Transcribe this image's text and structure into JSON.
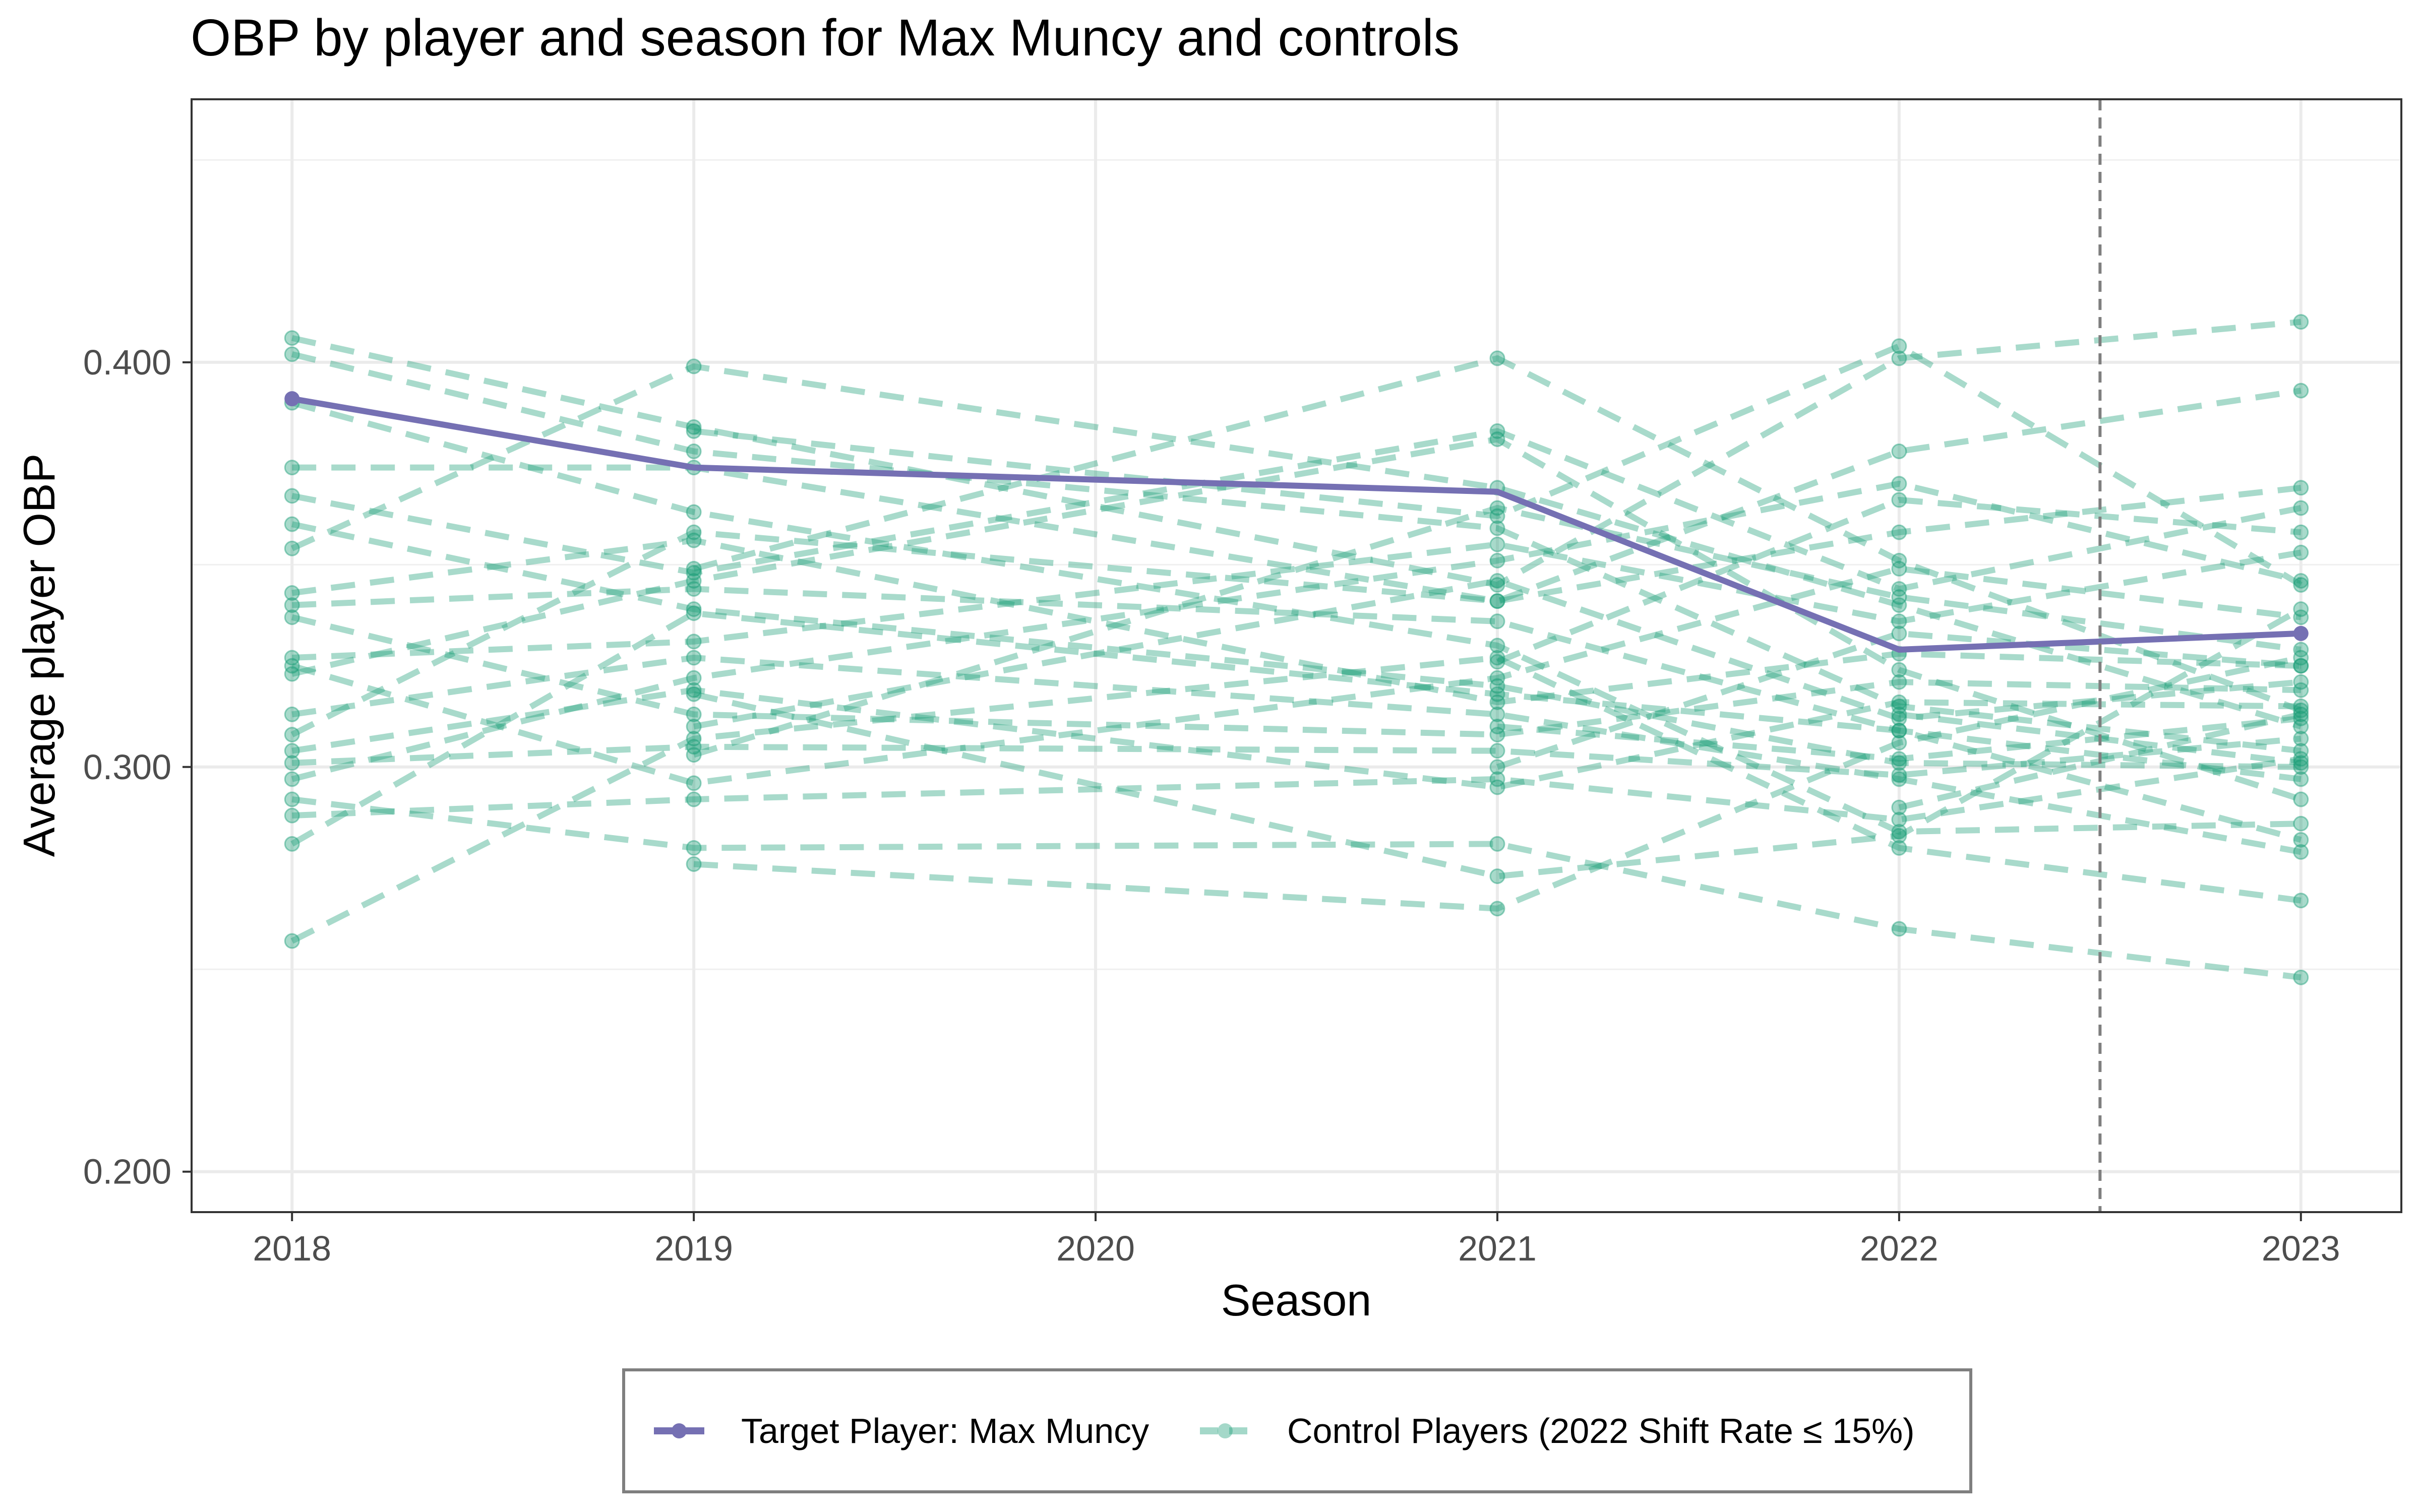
{
  "chart_data": {
    "type": "line",
    "title": "OBP by player and season for Max Muncy and controls",
    "xlabel": "Season",
    "ylabel": "Average player OBP",
    "x": [
      2018,
      2019,
      2020,
      2021,
      2022,
      2023
    ],
    "x_tick_labels": [
      "2018",
      "2019",
      "2020",
      "2021",
      "2022",
      "2023"
    ],
    "xlim": [
      2017.75,
      2023.25
    ],
    "ylim": [
      0.19,
      0.465
    ],
    "y_ticks": [
      0.2,
      0.3,
      0.4
    ],
    "y_tick_labels": [
      "0.200",
      "0.300",
      "0.400"
    ],
    "grid": true,
    "reference_line": {
      "x": 2022.5,
      "style": "dashed"
    },
    "legend": {
      "position": "bottom",
      "entries": [
        "Target Player: Max Muncy",
        "Control Players (2022 Shift Rate ≤ 15%)"
      ]
    },
    "colors": {
      "target": "#7570b3",
      "control": "#1b9e77",
      "reference": "#7f7f7f"
    },
    "series": [
      {
        "name": "Target Player: Max Muncy",
        "role": "target",
        "x": [
          2018,
          2019,
          2021,
          2022,
          2023
        ],
        "values": [
          0.391,
          0.374,
          0.368,
          0.329,
          0.333
        ]
      },
      {
        "name": "Control Players (2022 Shift Rate ≤ 15%)",
        "role": "control",
        "lines": [
          {
            "x": [
              2018,
              2019,
              2021,
              2022,
              2023
            ],
            "values": [
              0.406,
              0.384,
              0.345,
              0.401,
              0.41
            ]
          },
          {
            "x": [
              2018,
              2019,
              2021,
              2022,
              2023
            ],
            "values": [
              0.402,
              0.378,
              0.359,
              0.315,
              0.304
            ]
          },
          {
            "x": [
              2018,
              2019,
              2021,
              2022,
              2023
            ],
            "values": [
              0.39,
              0.363,
              0.33,
              0.284,
              0.286
            ]
          },
          {
            "x": [
              2018,
              2019,
              2021,
              2022,
              2023
            ],
            "values": [
              0.374,
              0.374,
              0.341,
              0.378,
              0.393
            ]
          },
          {
            "x": [
              2018,
              2019,
              2021,
              2022,
              2023
            ],
            "values": [
              0.367,
              0.348,
              0.383,
              0.344,
              0.364
            ]
          },
          {
            "x": [
              2018,
              2019,
              2021,
              2022,
              2023
            ],
            "values": [
              0.36,
              0.339,
              0.32,
              0.301,
              0.3
            ]
          },
          {
            "x": [
              2018,
              2019,
              2021,
              2022,
              2023
            ],
            "values": [
              0.354,
              0.399,
              0.369,
              0.34,
              0.31
            ]
          },
          {
            "x": [
              2018,
              2019,
              2021,
              2022,
              2023
            ],
            "values": [
              0.343,
              0.356,
              0.316,
              0.328,
              0.325
            ]
          },
          {
            "x": [
              2018,
              2019,
              2021,
              2022,
              2023
            ],
            "values": [
              0.34,
              0.344,
              0.336,
              0.309,
              0.297
            ]
          },
          {
            "x": [
              2018,
              2019,
              2021,
              2022,
              2023
            ],
            "values": [
              0.337,
              0.313,
              0.308,
              0.321,
              0.319
            ]
          },
          {
            "x": [
              2018,
              2019,
              2021,
              2022,
              2023
            ],
            "values": [
              0.327,
              0.331,
              0.355,
              0.336,
              0.353
            ]
          },
          {
            "x": [
              2018,
              2019,
              2021,
              2022,
              2023
            ],
            "values": [
              0.325,
              0.296,
              0.322,
              0.349,
              0.337
            ]
          },
          {
            "x": [
              2018,
              2019,
              2021,
              2022,
              2023
            ],
            "values": [
              0.323,
              0.346,
              0.381,
              0.324,
              0.292
            ]
          },
          {
            "x": [
              2018,
              2019,
              2021,
              2022,
              2023
            ],
            "values": [
              0.313,
              0.327,
              0.313,
              0.297,
              0.279
            ]
          },
          {
            "x": [
              2018,
              2019,
              2021,
              2022,
              2023
            ],
            "values": [
              0.308,
              0.358,
              0.341,
              0.358,
              0.369
            ]
          },
          {
            "x": [
              2018,
              2019,
              2021,
              2022,
              2023
            ],
            "values": [
              0.304,
              0.319,
              0.295,
              0.316,
              0.315
            ]
          },
          {
            "x": [
              2018,
              2019,
              2021,
              2022,
              2023
            ],
            "values": [
              0.301,
              0.305,
              0.304,
              0.298,
              0.307
            ]
          },
          {
            "x": [
              2018,
              2019,
              2021,
              2022,
              2023
            ],
            "values": [
              0.297,
              0.322,
              0.351,
              0.37,
              0.346
            ]
          },
          {
            "x": [
              2018,
              2019,
              2021,
              2022,
              2023
            ],
            "values": [
              0.292,
              0.28,
              0.281,
              0.26,
              0.248
            ]
          },
          {
            "x": [
              2018,
              2019,
              2021,
              2022,
              2023
            ],
            "values": [
              0.288,
              0.292,
              0.297,
              0.287,
              0.302
            ]
          },
          {
            "x": [
              2018,
              2019,
              2021,
              2022,
              2023
            ],
            "values": [
              0.281,
              0.338,
              0.318,
              0.309,
              0.282
            ]
          },
          {
            "x": [
              2018,
              2019,
              2021,
              2022,
              2023
            ],
            "values": [
              0.257,
              0.307,
              0.327,
              0.28,
              0.267
            ]
          },
          {
            "x": [
              2019,
              2021,
              2022,
              2023
            ],
            "values": [
              0.276,
              0.265,
              0.306,
              0.327
            ]
          },
          {
            "x": [
              2019,
              2021,
              2022,
              2023
            ],
            "values": [
              0.383,
              0.362,
              0.404,
              0.345
            ]
          },
          {
            "x": [
              2019,
              2021,
              2022,
              2023
            ],
            "values": [
              0.349,
              0.401,
              0.351,
              0.314
            ]
          },
          {
            "x": [
              2019,
              2021,
              2022,
              2023
            ],
            "values": [
              0.318,
              0.273,
              0.283,
              0.339
            ]
          },
          {
            "x": [
              2019,
              2021,
              2022,
              2023
            ],
            "values": [
              0.31,
              0.346,
              0.312,
              0.321
            ]
          },
          {
            "x": [
              2019,
              2021,
              2022,
              2023
            ],
            "values": [
              0.303,
              0.364,
              0.342,
              0.329
            ]
          },
          {
            "x": [
              2021,
              2022,
              2023
            ],
            "values": [
              0.326,
              0.366,
              0.358
            ]
          },
          {
            "x": [
              2021,
              2022,
              2023
            ],
            "values": [
              0.31,
              0.302,
              0.312
            ]
          },
          {
            "x": [
              2021,
              2022,
              2023
            ],
            "values": [
              0.3,
              0.333,
              0.325
            ]
          },
          {
            "x": [
              2022,
              2023
            ],
            "values": [
              0.313,
              0.301
            ]
          },
          {
            "x": [
              2022,
              2023
            ],
            "values": [
              0.29,
              0.313
            ]
          }
        ]
      }
    ]
  }
}
